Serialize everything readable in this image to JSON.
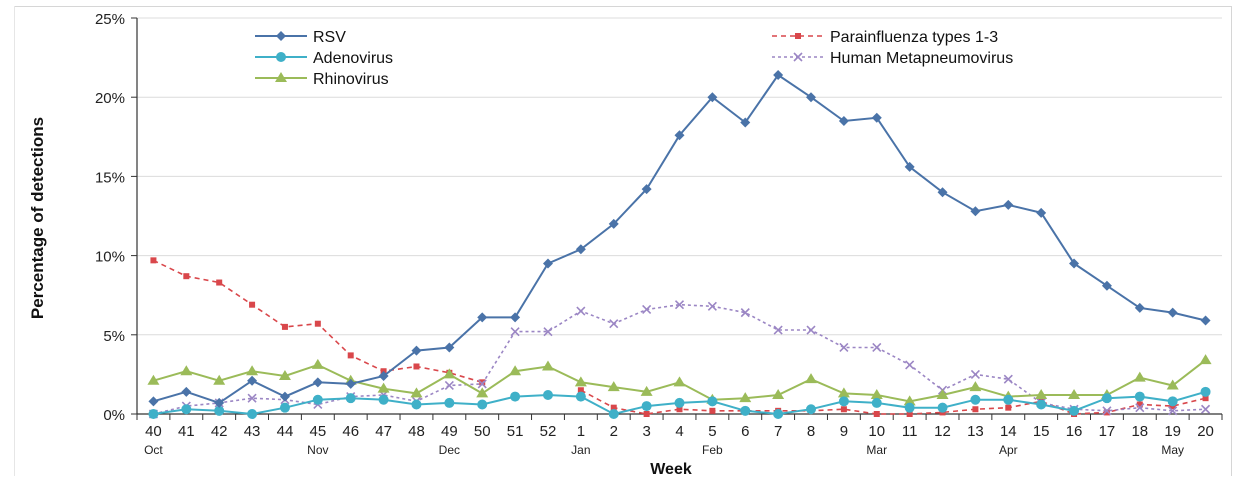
{
  "chart_data": {
    "type": "line",
    "title": "",
    "xlabel": "Week",
    "ylabel": "Percentage of detections",
    "ylim": [
      0,
      25
    ],
    "yticks": [
      "0%",
      "5%",
      "10%",
      "15%",
      "20%",
      "25%"
    ],
    "grid": "horizontal",
    "legend_placement": "top",
    "categories": [
      "40",
      "41",
      "42",
      "43",
      "44",
      "45",
      "46",
      "47",
      "48",
      "49",
      "50",
      "51",
      "52",
      "1",
      "2",
      "3",
      "4",
      "5",
      "6",
      "7",
      "8",
      "9",
      "10",
      "11",
      "12",
      "13",
      "14",
      "15",
      "16",
      "17",
      "18",
      "19",
      "20"
    ],
    "months": [
      {
        "label": "Oct",
        "week": "40"
      },
      {
        "label": "Nov",
        "week": "45"
      },
      {
        "label": "Dec",
        "week": "49"
      },
      {
        "label": "Jan",
        "week": "1"
      },
      {
        "label": "Feb",
        "week": "5"
      },
      {
        "label": "Mar",
        "week": "10"
      },
      {
        "label": "Apr",
        "week": "14"
      },
      {
        "label": "May",
        "week": "19"
      }
    ],
    "series": [
      {
        "name": "RSV",
        "color": "#4a73a8",
        "style": "solid",
        "marker": "diamond",
        "values": [
          0.8,
          1.4,
          0.7,
          2.1,
          1.1,
          2.0,
          1.9,
          2.4,
          4.0,
          4.2,
          6.1,
          6.1,
          9.5,
          10.4,
          12.0,
          14.2,
          17.6,
          20.0,
          18.4,
          21.4,
          20.0,
          18.5,
          18.7,
          15.6,
          14.0,
          12.8,
          13.2,
          12.7,
          9.5,
          8.1,
          6.7,
          6.4,
          5.9
        ]
      },
      {
        "name": "Adenovirus",
        "color": "#3fb0c8",
        "style": "solid",
        "marker": "circle",
        "values": [
          0.0,
          0.3,
          0.2,
          0.0,
          0.4,
          0.9,
          1.0,
          0.9,
          0.6,
          0.7,
          0.6,
          1.1,
          1.2,
          1.1,
          0.0,
          0.5,
          0.7,
          0.8,
          0.2,
          0.0,
          0.3,
          0.8,
          0.7,
          0.4,
          0.4,
          0.9,
          0.9,
          0.6,
          0.2,
          1.0,
          1.1,
          0.8,
          1.4
        ]
      },
      {
        "name": "Rhinovirus",
        "color": "#9bbb59",
        "style": "solid",
        "marker": "triangle",
        "values": [
          2.1,
          2.7,
          2.1,
          2.7,
          2.4,
          3.1,
          2.1,
          1.6,
          1.3,
          2.5,
          1.3,
          2.7,
          3.0,
          2.0,
          1.7,
          1.4,
          2.0,
          0.9,
          1.0,
          1.2,
          2.2,
          1.3,
          1.2,
          0.8,
          1.2,
          1.7,
          1.1,
          1.2,
          1.2,
          1.2,
          2.3,
          1.8,
          3.4
        ]
      },
      {
        "name": "Parainfluenza types 1-3",
        "color": "#d9474b",
        "style": "dashed",
        "marker": "square",
        "values": [
          9.7,
          8.7,
          8.3,
          6.9,
          5.5,
          5.7,
          3.7,
          2.7,
          3.0,
          2.6,
          2.0,
          null,
          null,
          1.5,
          0.4,
          0.0,
          0.3,
          0.2,
          0.2,
          0.2,
          0.2,
          0.3,
          0.0,
          0.0,
          0.1,
          0.3,
          0.4,
          0.8,
          0.0,
          0.1,
          0.6,
          0.5,
          1.0
        ]
      },
      {
        "name": "Human Metapneumovirus",
        "color": "#9b86c4",
        "style": "dashed",
        "marker": "x",
        "values": [
          0.0,
          0.5,
          0.7,
          1.0,
          0.9,
          0.6,
          1.1,
          1.2,
          0.8,
          1.8,
          1.9,
          5.2,
          5.2,
          6.5,
          5.7,
          6.6,
          6.9,
          6.8,
          6.4,
          5.3,
          5.3,
          4.2,
          4.2,
          3.1,
          1.5,
          2.5,
          2.2,
          0.7,
          0.3,
          0.2,
          0.4,
          0.2,
          0.3
        ]
      }
    ]
  }
}
